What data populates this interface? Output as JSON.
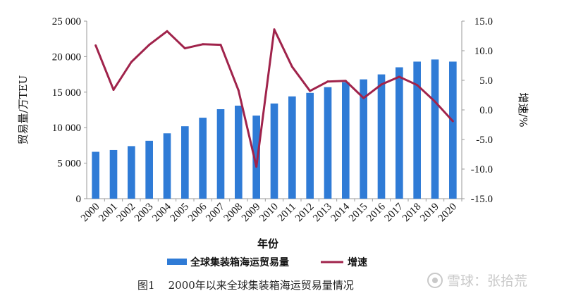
{
  "chart_data": {
    "type": "bar+line",
    "categories": [
      "2000",
      "2001",
      "2002",
      "2003",
      "2004",
      "2005",
      "2006",
      "2007",
      "2008",
      "2009",
      "2010",
      "2011",
      "2012",
      "2013",
      "2014",
      "2015",
      "2016",
      "2017",
      "2018",
      "2019",
      "2020"
    ],
    "series": [
      {
        "name": "全球集装箱海运贸易量",
        "type": "bar",
        "axis": "left",
        "color": "#2F7BD6",
        "values": [
          6600,
          6850,
          7400,
          8150,
          9200,
          10200,
          11400,
          12600,
          13100,
          11700,
          13400,
          14400,
          14900,
          15700,
          16400,
          16800,
          17500,
          18500,
          19300,
          19600,
          19300
        ]
      },
      {
        "name": "增速",
        "type": "line",
        "axis": "right",
        "color": "#A0234B",
        "values": [
          10.9,
          3.4,
          8.1,
          11.0,
          13.3,
          10.4,
          11.1,
          11.0,
          3.3,
          -9.6,
          13.6,
          7.3,
          3.2,
          4.8,
          4.9,
          2.0,
          4.3,
          5.6,
          4.2,
          1.4,
          -1.9
        ]
      }
    ],
    "y_left": {
      "label": "贸易量/万TEU",
      "range": [
        0,
        25000
      ],
      "ticks": [
        "0",
        "5 000",
        "10 000",
        "15 000",
        "20 000",
        "25 000"
      ],
      "tick_values": [
        0,
        5000,
        10000,
        15000,
        20000,
        25000
      ]
    },
    "y_right": {
      "label": "增速/%",
      "range": [
        -15,
        15
      ],
      "ticks": [
        "15.0",
        "10.0",
        "5.0",
        "0.0",
        "-5.0",
        "-10.0",
        "-15.0"
      ],
      "tick_values": [
        15,
        10,
        5,
        0,
        -5,
        -10,
        -15
      ]
    },
    "xlabel": "年份",
    "legend": {
      "placement": "bottom",
      "items": [
        "全球集装箱海运贸易量",
        "增速"
      ]
    },
    "grid": false
  },
  "caption": {
    "figure_no": "图1",
    "text": "2000年以来全球集装箱海运贸易量情况"
  },
  "watermark": {
    "text": "雪球：张拾荒"
  },
  "colors": {
    "bar": "#2F7BD6",
    "line": "#A0234B",
    "axis": "#9a9a9a"
  }
}
